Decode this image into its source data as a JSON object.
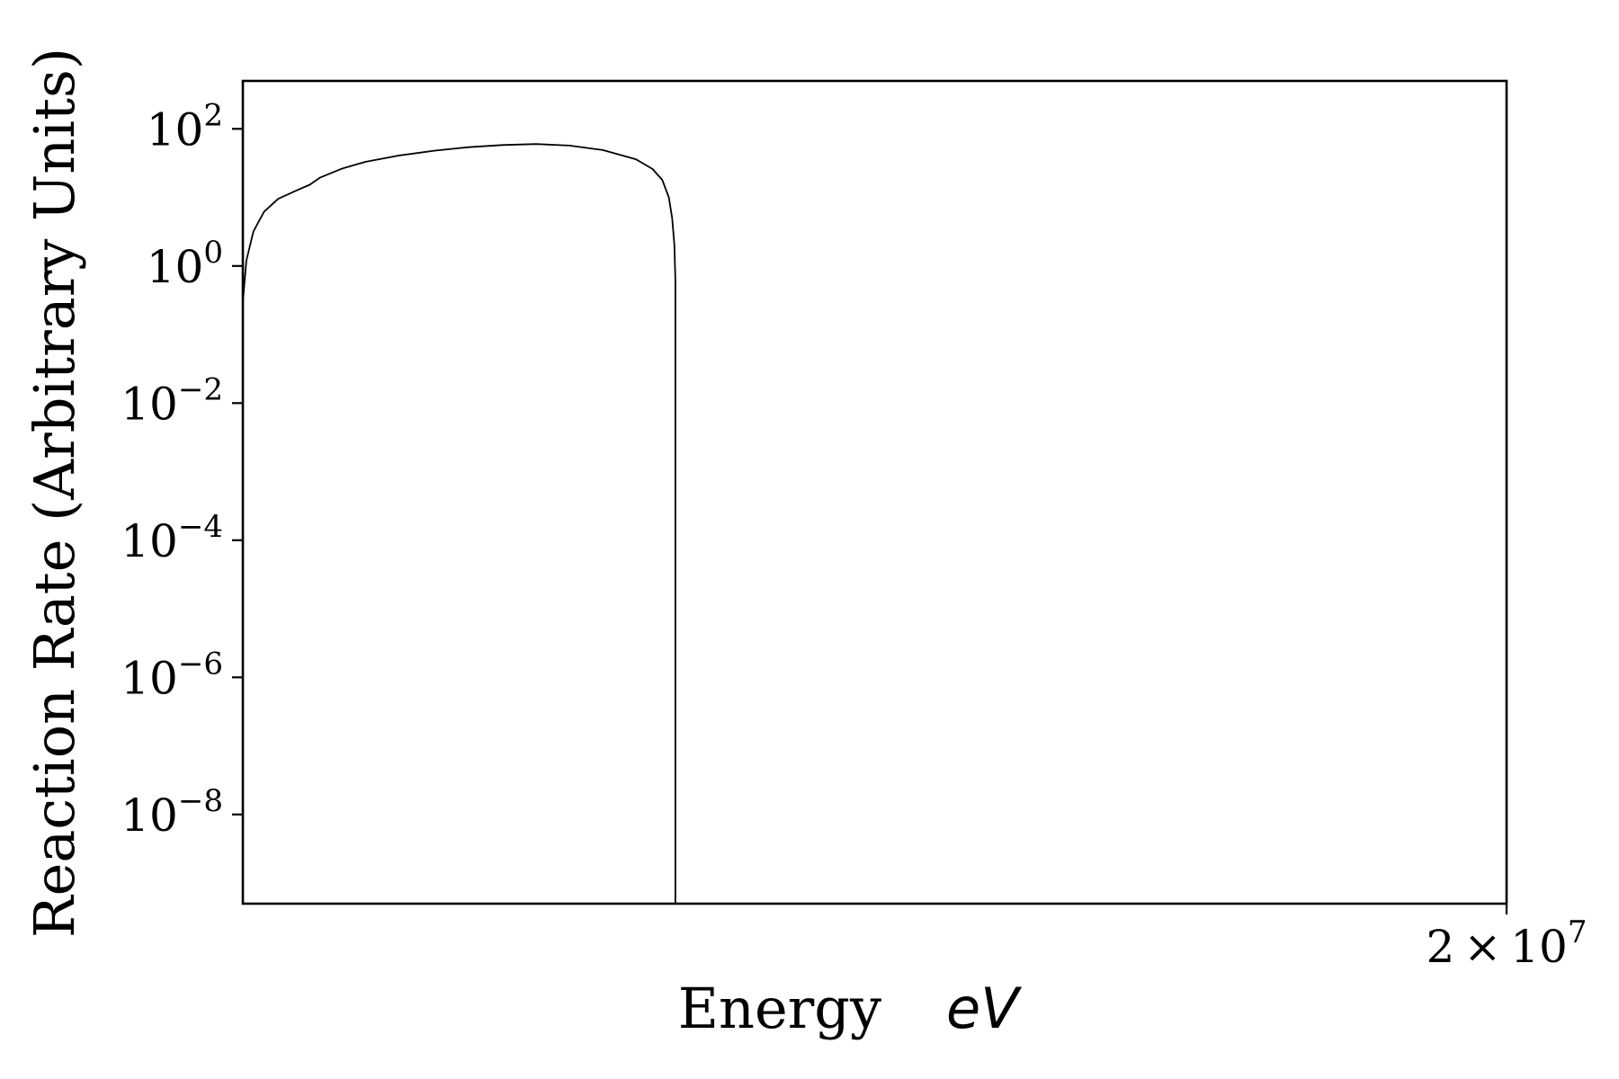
{
  "chart_data": {
    "type": "line",
    "xlabel": "Energy",
    "xlabel_unit": "eV",
    "ylabel": "Reaction Rate (Arbitrary Units)",
    "x_scale": "log",
    "y_scale": "log",
    "y_ticks": [
      {
        "value": 100,
        "base": "10",
        "exp": "2"
      },
      {
        "value": 1,
        "base": "10",
        "exp": "0"
      },
      {
        "value": 0.01,
        "base": "10",
        "exp": "−2"
      },
      {
        "value": 0.0001,
        "base": "10",
        "exp": "−4"
      },
      {
        "value": 1e-06,
        "base": "10",
        "exp": "−6"
      },
      {
        "value": 1e-08,
        "base": "10",
        "exp": "−8"
      }
    ],
    "x_ticks": [
      {
        "value": 20000000,
        "mantissa": "2",
        "times": "×",
        "base": "10",
        "exp": "7"
      }
    ],
    "xlim": [
      16000000,
      20000000
    ],
    "ylim": [
      5e-10,
      500
    ],
    "grid": false,
    "series": [
      {
        "color": "#000000",
        "points": [
          [
            16000000,
            0.3
          ],
          [
            16010000,
            1.2
          ],
          [
            16030000,
            3.2
          ],
          [
            16060000,
            6.2
          ],
          [
            16100000,
            9.5
          ],
          [
            16150000,
            12.5
          ],
          [
            16190000,
            15.3
          ],
          [
            16220000,
            19.5
          ],
          [
            16280000,
            26
          ],
          [
            16350000,
            33
          ],
          [
            16450000,
            41
          ],
          [
            16550000,
            48
          ],
          [
            16650000,
            54
          ],
          [
            16750000,
            58
          ],
          [
            16850000,
            60
          ],
          [
            16950000,
            57
          ],
          [
            17050000,
            49
          ],
          [
            17150000,
            36
          ],
          [
            17200000,
            26
          ],
          [
            17230000,
            18
          ],
          [
            17250000,
            10
          ],
          [
            17260000,
            5
          ],
          [
            17267000,
            2
          ],
          [
            17270000,
            0.6
          ],
          [
            17270000,
            5e-10
          ]
        ]
      }
    ]
  }
}
